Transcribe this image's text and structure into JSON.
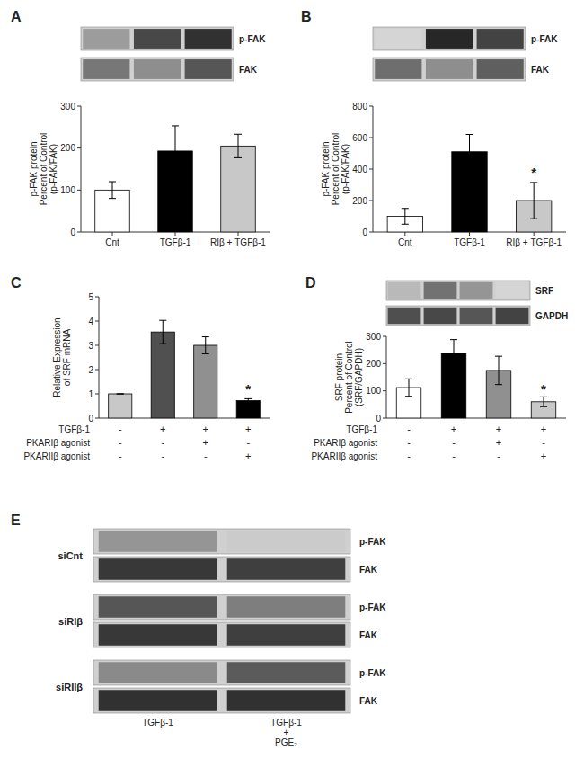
{
  "chart_data": [
    {
      "type": "heatmap",
      "title": "A",
      "series": [
        {
          "name": "p-FAK",
          "values": [
            0.42,
            0.78,
            0.88
          ]
        },
        {
          "name": "FAK",
          "values": [
            0.58,
            0.48,
            0.72
          ]
        }
      ]
    },
    {
      "type": "bar",
      "categories": [
        "Cnt",
        "TGFβ-1",
        "RIβ + TGFβ-1"
      ],
      "values": [
        100,
        193,
        205
      ],
      "errors": [
        20,
        60,
        28
      ],
      "colors": [
        "#ffffff",
        "#000000",
        "#c8c8c8"
      ],
      "y_label": "p-FAK protein\nPercent of Control\n(p-FAK/FAK)",
      "ylim": [
        0,
        300
      ],
      "yticks": [
        0,
        100,
        200,
        300
      ]
    },
    {
      "type": "heatmap",
      "title": "B",
      "series": [
        {
          "name": "p-FAK",
          "values": [
            0.18,
            0.92,
            0.8
          ]
        },
        {
          "name": "FAK",
          "values": [
            0.62,
            0.48,
            0.68
          ]
        }
      ]
    },
    {
      "type": "bar",
      "categories": [
        "Cnt",
        "TGFβ-1",
        "RIβ + TGFβ-1"
      ],
      "values": [
        100,
        510,
        200
      ],
      "errors": [
        50,
        110,
        115
      ],
      "colors": [
        "#ffffff",
        "#000000",
        "#c8c8c8"
      ],
      "y_label": "p-FAK protein\nPercent of Control\n(p-FAK/FAK)",
      "ylim": [
        0,
        800
      ],
      "yticks": [
        0,
        200,
        400,
        600,
        800
      ],
      "annotations": [
        {
          "text": "*",
          "bar": 2
        }
      ]
    },
    {
      "type": "bar",
      "title": "C",
      "categories": [
        null,
        null,
        null,
        null
      ],
      "tick_labels": "y",
      "values": [
        1.0,
        3.55,
        3.0,
        0.72
      ],
      "errors": [
        0.0,
        0.48,
        0.35,
        0.08
      ],
      "colors": [
        "#c8c8c8",
        "#505050",
        "#909090",
        "#000000"
      ],
      "y_label": "Relative Expression\nof SRF mRNA",
      "ylim": [
        0,
        5
      ],
      "yticks": [
        0,
        1,
        2,
        3,
        4,
        5
      ],
      "annotations": [
        {
          "text": "*",
          "bar": 3
        }
      ],
      "table": [
        {
          "label": "TGFβ-1",
          "values": [
            "-",
            "+",
            "+",
            "+"
          ]
        },
        {
          "label": "PKARIβ agonist",
          "values": [
            "-",
            "-",
            "+",
            "-"
          ]
        },
        {
          "label": "PKARIIβ agonist",
          "values": [
            "-",
            "-",
            "-",
            "+"
          ]
        }
      ]
    },
    {
      "type": "heatmap",
      "title": "D",
      "series": [
        {
          "name": "SRF",
          "values": [
            0.3,
            0.6,
            0.45,
            0.18
          ]
        },
        {
          "name": "GAPDH",
          "values": [
            0.75,
            0.78,
            0.72,
            0.8
          ]
        }
      ]
    },
    {
      "type": "bar",
      "categories": [
        null,
        null,
        null,
        null
      ],
      "tick_labels": "y",
      "values": [
        112,
        238,
        175,
        60
      ],
      "errors": [
        32,
        50,
        52,
        18
      ],
      "colors": [
        "#ffffff",
        "#000000",
        "#909090",
        "#c8c8c8"
      ],
      "y_label": "SRF protein\nPercent of Control\n(SRF/GAPDH)",
      "ylim": [
        0,
        300
      ],
      "yticks": [
        0,
        100,
        200,
        300
      ],
      "annotations": [
        {
          "text": "*",
          "bar": 3
        }
      ],
      "table": [
        {
          "label": "TGFβ-1",
          "values": [
            "-",
            "+",
            "+",
            "+"
          ]
        },
        {
          "label": "PKARIβ agonist",
          "values": [
            "-",
            "-",
            "+",
            "-"
          ]
        },
        {
          "label": "PKARIIβ agonist",
          "values": [
            "-",
            "-",
            "-",
            "+"
          ]
        }
      ]
    },
    {
      "type": "heatmap",
      "title": "E",
      "categories": [
        "TGFβ-1",
        "TGFβ-1\n+\nPGE₂"
      ],
      "groups": [
        {
          "name": "siCnt",
          "series": [
            {
              "name": "p-FAK",
              "values": [
                0.45,
                0.22
              ]
            },
            {
              "name": "FAK",
              "values": [
                0.85,
                0.82
              ]
            }
          ]
        },
        {
          "name": "siRIβ",
          "series": [
            {
              "name": "p-FAK",
              "values": [
                0.72,
                0.55
              ]
            },
            {
              "name": "FAK",
              "values": [
                0.85,
                0.82
              ]
            }
          ]
        },
        {
          "name": "siRIIβ",
          "series": [
            {
              "name": "p-FAK",
              "values": [
                0.5,
                0.7
              ]
            },
            {
              "name": "FAK",
              "values": [
                0.88,
                0.88
              ]
            }
          ]
        }
      ]
    }
  ]
}
